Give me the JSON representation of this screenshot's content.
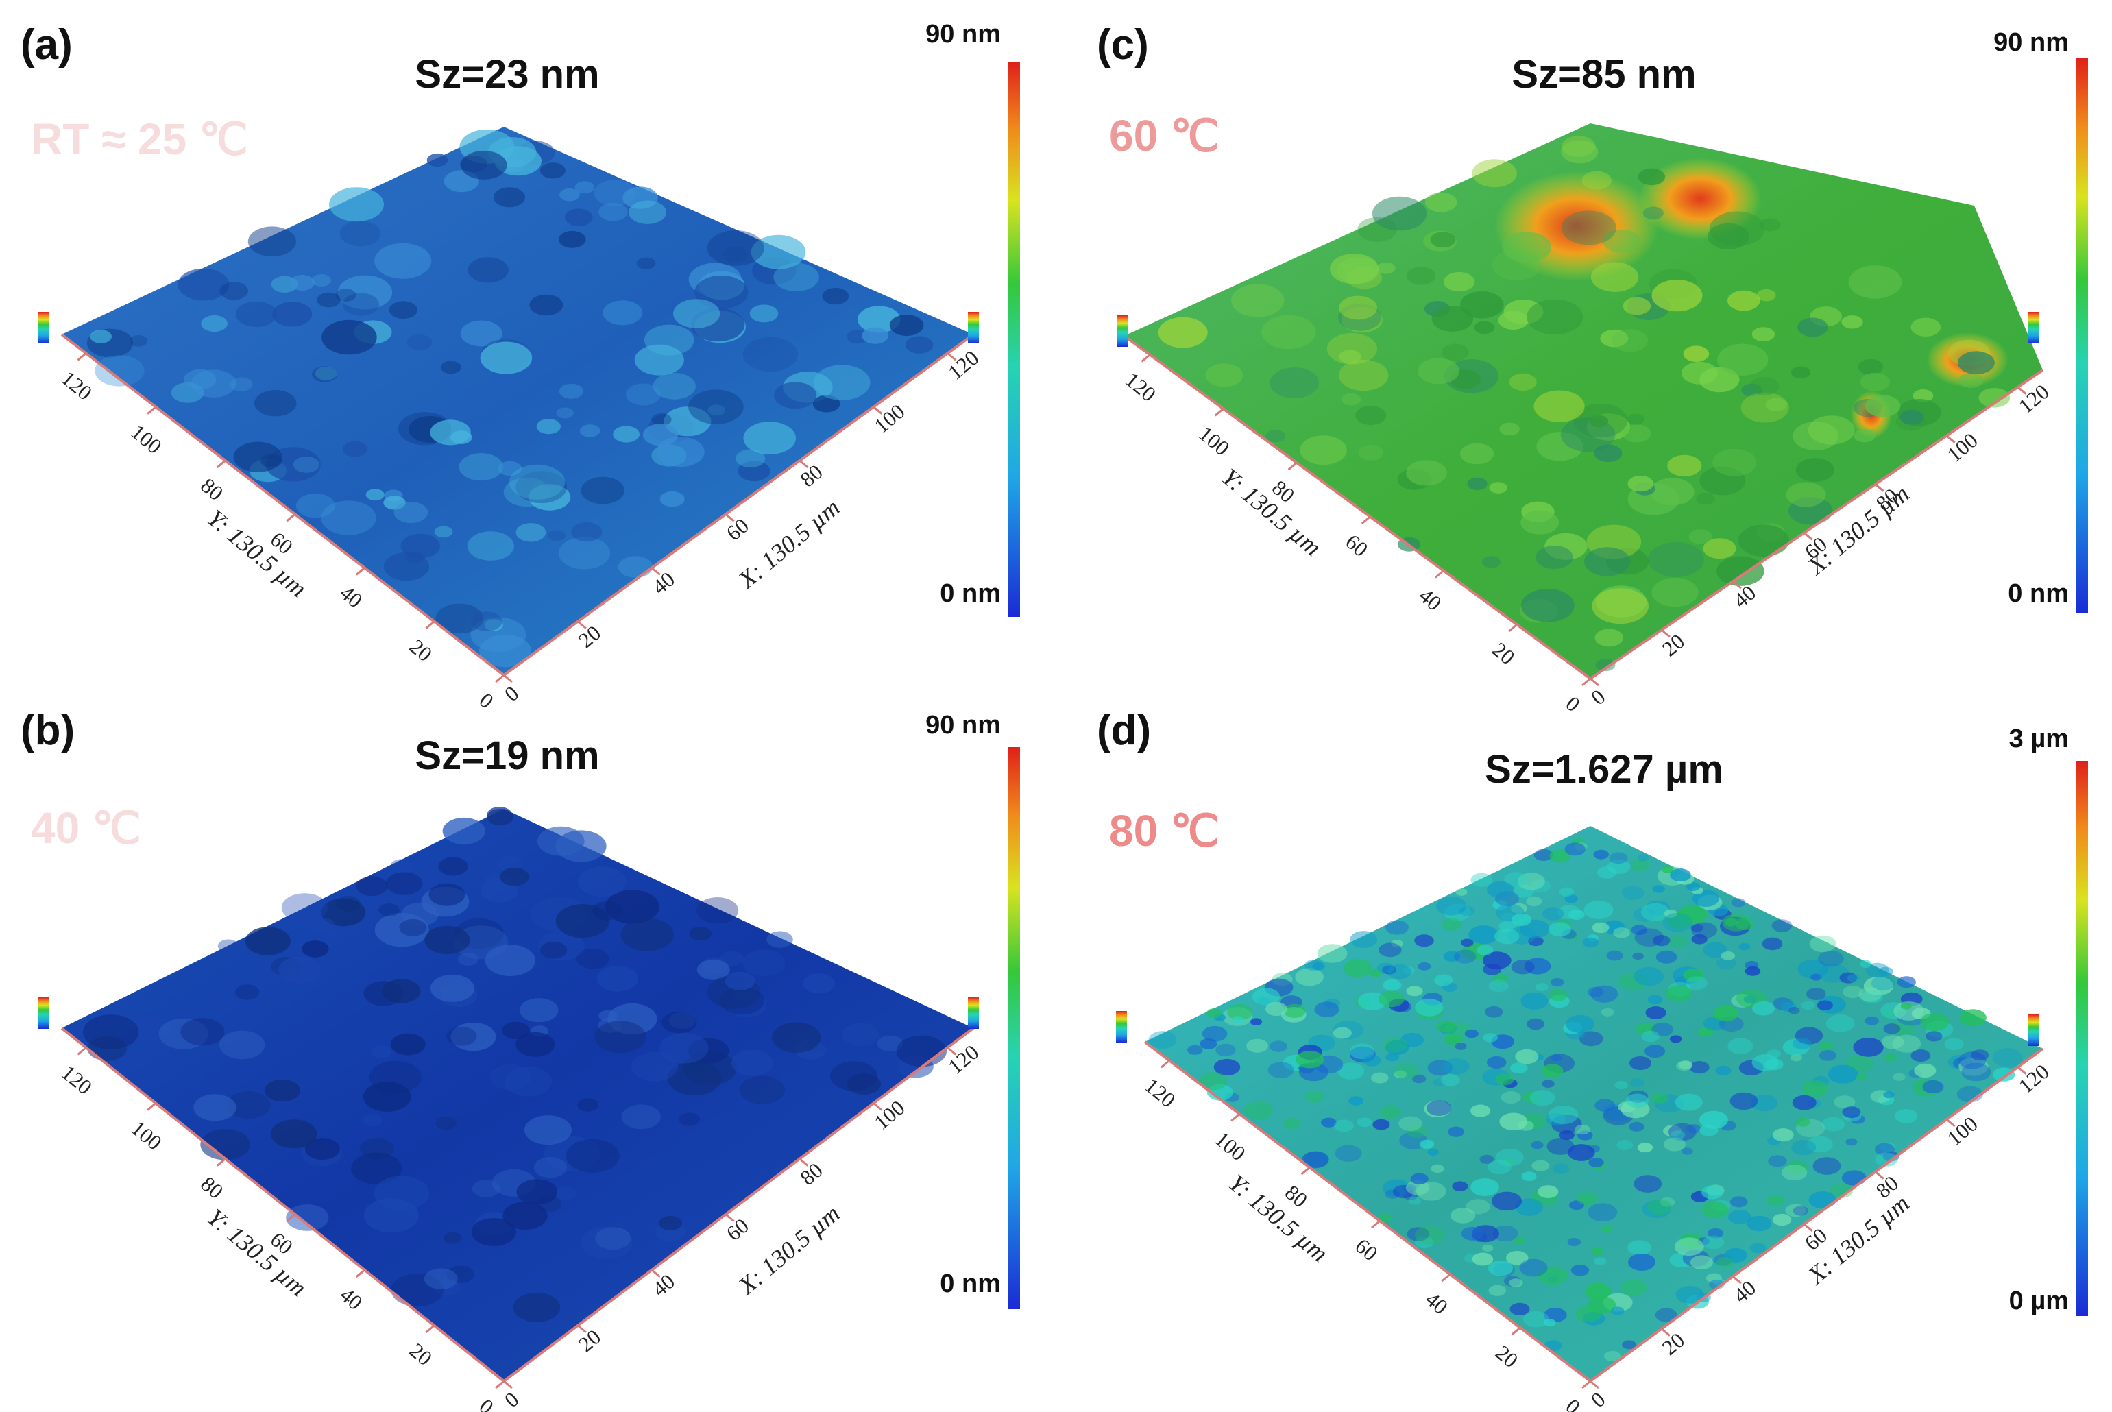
{
  "figure": {
    "axis_x_label": "X: 130.5 µm",
    "axis_y_label": "Y: 130.5 µm",
    "ticks": [
      "0",
      "20",
      "40",
      "60",
      "80",
      "100",
      "120"
    ],
    "panels": [
      {
        "letter": "(a)",
        "sz": "Sz=23 nm",
        "temperature": "RT ≈ 25 ℃",
        "temperature_color": "#f6dcdc",
        "scale_max": "90 nm",
        "scale_min": "0 nm",
        "surface_style": "smooth-blue"
      },
      {
        "letter": "(b)",
        "sz": "Sz=19 nm",
        "temperature": "40 ℃",
        "temperature_color": "#f6dcdc",
        "scale_max": "90 nm",
        "scale_min": "0 nm",
        "surface_style": "dark-blue"
      },
      {
        "letter": "(c)",
        "sz": "Sz=85 nm",
        "temperature": "60 ℃",
        "temperature_color": "#ef9a9a",
        "scale_max": "90 nm",
        "scale_min": "0 nm",
        "surface_style": "green-peaks"
      },
      {
        "letter": "(d)",
        "sz": "Sz=1.627 µm",
        "temperature": "80 ℃",
        "temperature_color": "#ef8a8a",
        "scale_max": "3 µm",
        "scale_min": "0 µm",
        "surface_style": "rough-cyan"
      }
    ]
  }
}
